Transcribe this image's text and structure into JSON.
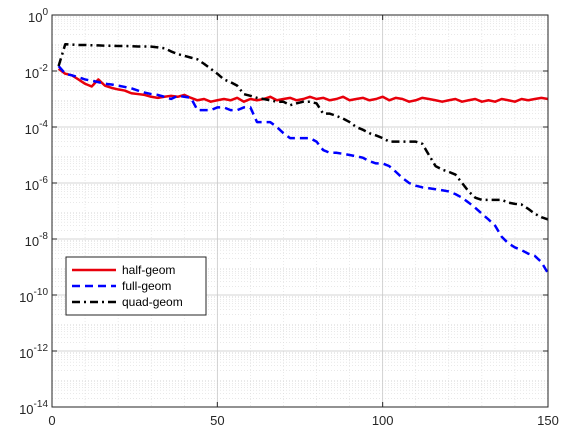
{
  "chart_data": {
    "type": "line",
    "title": "",
    "xlabel": "",
    "ylabel": "",
    "xlim": [
      0,
      150
    ],
    "ylim_exp": [
      -14,
      0
    ],
    "y_scale": "log",
    "grid": true,
    "minor_grid": true,
    "legend_placement": "lower-left",
    "x_ticks": [
      {
        "value": 0,
        "label": "0"
      },
      {
        "value": 50,
        "label": "50"
      },
      {
        "value": 100,
        "label": "100"
      },
      {
        "value": 150,
        "label": "150"
      }
    ],
    "y_ticks": [
      {
        "exp": 0,
        "base": "10",
        "power": "0"
      },
      {
        "exp": -2,
        "base": "10",
        "power": "-2"
      },
      {
        "exp": -4,
        "base": "10",
        "power": "-4"
      },
      {
        "exp": -6,
        "base": "10",
        "power": "-6"
      },
      {
        "exp": -8,
        "base": "10",
        "power": "-8"
      },
      {
        "exp": -10,
        "base": "10",
        "power": "-10"
      },
      {
        "exp": -12,
        "base": "10",
        "power": "-12"
      },
      {
        "exp": -14,
        "base": "10",
        "power": "-14"
      }
    ],
    "series": [
      {
        "name": "half-geom",
        "color": "#e8000b",
        "dash": "solid",
        "x": [
          2,
          4,
          6,
          8,
          10,
          12,
          14,
          16,
          18,
          20,
          22,
          24,
          26,
          28,
          30,
          32,
          34,
          36,
          38,
          40,
          42,
          44,
          46,
          48,
          50,
          52,
          54,
          56,
          58,
          60,
          62,
          64,
          66,
          68,
          70,
          72,
          74,
          76,
          78,
          80,
          82,
          84,
          86,
          88,
          90,
          92,
          94,
          96,
          98,
          100,
          102,
          104,
          106,
          108,
          110,
          112,
          114,
          116,
          118,
          120,
          122,
          124,
          126,
          128,
          130,
          132,
          134,
          136,
          138,
          140,
          142,
          144,
          146,
          148,
          150
        ],
        "y": [
          0.012,
          0.008,
          0.007,
          0.005,
          0.0035,
          0.0028,
          0.005,
          0.003,
          0.0025,
          0.0022,
          0.002,
          0.0016,
          0.0015,
          0.0014,
          0.0012,
          0.0011,
          0.0012,
          0.0013,
          0.0012,
          0.0014,
          0.0011,
          0.0009,
          0.001,
          0.0008,
          0.0009,
          0.001,
          0.0009,
          0.0011,
          0.0008,
          0.001,
          0.0009,
          0.001,
          0.0012,
          0.0009,
          0.001,
          0.0011,
          0.0009,
          0.001,
          0.0012,
          0.001,
          0.0011,
          0.0009,
          0.001,
          0.0012,
          0.0009,
          0.001,
          0.0011,
          0.0009,
          0.001,
          0.0012,
          0.0009,
          0.0011,
          0.001,
          0.0008,
          0.0009,
          0.0011,
          0.001,
          0.0009,
          0.0008,
          0.0009,
          0.001,
          0.0008,
          0.0009,
          0.001,
          0.0008,
          0.0009,
          0.0008,
          0.001,
          0.0009,
          0.0008,
          0.001,
          0.0009,
          0.001,
          0.0011,
          0.001
        ]
      },
      {
        "name": "full-geom",
        "color": "#0000ff",
        "dash": "dashed",
        "x": [
          2,
          4,
          6,
          8,
          10,
          12,
          14,
          16,
          18,
          20,
          22,
          24,
          26,
          28,
          30,
          32,
          34,
          36,
          38,
          40,
          42,
          44,
          46,
          48,
          50,
          52,
          54,
          56,
          58,
          60,
          62,
          64,
          66,
          68,
          70,
          72,
          74,
          76,
          78,
          80,
          82,
          84,
          86,
          88,
          90,
          92,
          94,
          96,
          98,
          100,
          102,
          104,
          106,
          108,
          110,
          112,
          114,
          116,
          118,
          120,
          122,
          124,
          126,
          128,
          130,
          132,
          134,
          136,
          138,
          140,
          142,
          144,
          146,
          148,
          150
        ],
        "y": [
          0.015,
          0.008,
          0.007,
          0.006,
          0.005,
          0.0045,
          0.004,
          0.0035,
          0.0033,
          0.003,
          0.0027,
          0.0024,
          0.002,
          0.0017,
          0.0015,
          0.0014,
          0.0012,
          0.001,
          0.0013,
          0.0012,
          0.0011,
          0.0004,
          0.0004,
          0.0004,
          0.0005,
          0.0005,
          0.0004,
          0.0004,
          0.0005,
          0.0005,
          0.00015,
          0.00015,
          0.00015,
          0.0001,
          6e-05,
          4e-05,
          4e-05,
          4e-05,
          4e-05,
          3e-05,
          1.5e-05,
          1.2e-05,
          1.2e-05,
          1.1e-05,
          1e-05,
          9e-06,
          8e-06,
          6e-06,
          5e-06,
          5e-06,
          4e-06,
          2.5e-06,
          1.5e-06,
          1e-06,
          8e-07,
          7e-07,
          6.5e-07,
          6e-07,
          5.5e-07,
          5e-07,
          4e-07,
          3e-07,
          2e-07,
          1.3e-07,
          8e-08,
          5e-08,
          3e-08,
          1.2e-08,
          7e-09,
          5e-09,
          4e-09,
          3e-09,
          2.5e-09,
          1.5e-09,
          6e-10
        ]
      },
      {
        "name": "quad-geom",
        "color": "#000000",
        "dash": "dashdot",
        "x": [
          2,
          4,
          6,
          8,
          10,
          12,
          14,
          16,
          18,
          20,
          22,
          24,
          26,
          28,
          30,
          32,
          34,
          36,
          38,
          40,
          42,
          44,
          46,
          48,
          50,
          52,
          54,
          56,
          58,
          60,
          62,
          64,
          66,
          68,
          70,
          72,
          74,
          76,
          78,
          80,
          82,
          84,
          86,
          88,
          90,
          92,
          94,
          96,
          98,
          100,
          102,
          104,
          106,
          108,
          110,
          112,
          114,
          116,
          118,
          120,
          122,
          124,
          126,
          128,
          130,
          132,
          134,
          136,
          138,
          140,
          142,
          144,
          146,
          148,
          150
        ],
        "y": [
          0.015,
          0.09,
          0.088,
          0.085,
          0.085,
          0.083,
          0.082,
          0.08,
          0.08,
          0.078,
          0.078,
          0.077,
          0.075,
          0.075,
          0.074,
          0.07,
          0.065,
          0.05,
          0.04,
          0.035,
          0.03,
          0.026,
          0.018,
          0.012,
          0.008,
          0.005,
          0.004,
          0.003,
          0.0015,
          0.0013,
          0.0011,
          0.001,
          0.0009,
          0.0008,
          0.0008,
          0.0006,
          0.0007,
          0.0008,
          0.0008,
          0.0007,
          0.0003,
          0.0003,
          0.00025,
          0.0002,
          0.00015,
          0.0001,
          8e-05,
          6e-05,
          5e-05,
          4e-05,
          3e-05,
          3e-05,
          3e-05,
          3e-05,
          3e-05,
          2.5e-05,
          1e-05,
          4e-06,
          3e-06,
          2.5e-06,
          2e-06,
          1e-06,
          5e-07,
          3e-07,
          2.5e-07,
          2.5e-07,
          2.5e-07,
          2.5e-07,
          2e-07,
          1.8e-07,
          1.7e-07,
          1.2e-07,
          8e-08,
          6e-08,
          5e-08
        ]
      }
    ]
  }
}
